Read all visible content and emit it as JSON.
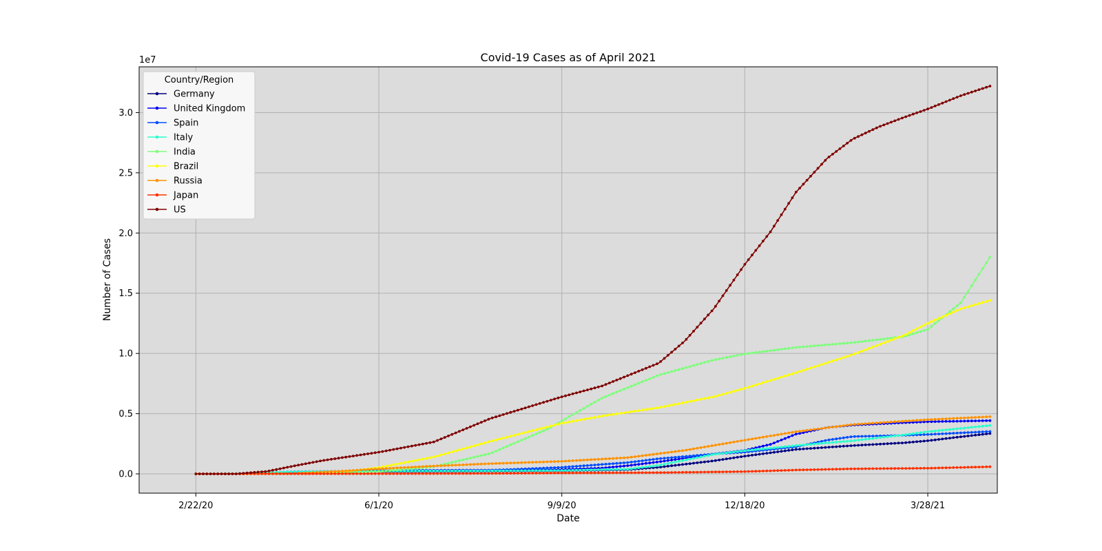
{
  "chart_data": {
    "type": "line",
    "title": "Covid-19 Cases as of April 2021",
    "xlabel": "Date",
    "ylabel": "Number of Cases",
    "y_multiplier_label": "1e7",
    "x_tick_labels": [
      "2/22/20",
      "6/1/20",
      "9/9/20",
      "12/18/20",
      "3/28/21"
    ],
    "y_tick_labels": [
      "0.0",
      "0.5",
      "1.0",
      "1.5",
      "2.0",
      "2.5",
      "3.0"
    ],
    "x_range": [
      "2020-01-22",
      "2021-05-05"
    ],
    "y_range": [
      -1600000,
      33800000
    ],
    "grid": true,
    "legend_placement": "top-left",
    "legend_title": "Country/Region",
    "series": [
      {
        "name": "Germany",
        "color": "#00007f",
        "points": [
          [
            "2020-02-22",
            0
          ],
          [
            "2020-03-15",
            5000
          ],
          [
            "2020-04-15",
            130000
          ],
          [
            "2020-06-01",
            183000
          ],
          [
            "2020-08-01",
            210000
          ],
          [
            "2020-09-09",
            255000
          ],
          [
            "2020-10-15",
            350000
          ],
          [
            "2020-11-01",
            550000
          ],
          [
            "2020-12-01",
            1080000
          ],
          [
            "2020-12-18",
            1470000
          ],
          [
            "2021-01-15",
            2030000
          ],
          [
            "2021-02-15",
            2350000
          ],
          [
            "2021-03-15",
            2580000
          ],
          [
            "2021-03-28",
            2750000
          ],
          [
            "2021-04-15",
            3080000
          ],
          [
            "2021-05-01",
            3350000
          ]
        ]
      },
      {
        "name": "United Kingdom",
        "color": "#0000f1",
        "points": [
          [
            "2020-02-22",
            0
          ],
          [
            "2020-03-15",
            1400
          ],
          [
            "2020-04-15",
            100000
          ],
          [
            "2020-06-01",
            280000
          ],
          [
            "2020-08-01",
            310000
          ],
          [
            "2020-09-09",
            360000
          ],
          [
            "2020-10-01",
            480000
          ],
          [
            "2020-10-15",
            680000
          ],
          [
            "2020-11-01",
            1000000
          ],
          [
            "2020-12-01",
            1650000
          ],
          [
            "2020-12-18",
            1950000
          ],
          [
            "2021-01-01",
            2450000
          ],
          [
            "2021-01-15",
            3300000
          ],
          [
            "2021-02-01",
            3850000
          ],
          [
            "2021-02-15",
            4050000
          ],
          [
            "2021-03-15",
            4250000
          ],
          [
            "2021-03-28",
            4330000
          ],
          [
            "2021-05-01",
            4420000
          ]
        ]
      },
      {
        "name": "Spain",
        "color": "#004dff",
        "points": [
          [
            "2020-02-22",
            0
          ],
          [
            "2020-03-15",
            7700
          ],
          [
            "2020-04-15",
            180000
          ],
          [
            "2020-06-01",
            240000
          ],
          [
            "2020-08-01",
            300000
          ],
          [
            "2020-09-09",
            540000
          ],
          [
            "2020-10-15",
            940000
          ],
          [
            "2020-11-01",
            1260000
          ],
          [
            "2020-12-01",
            1650000
          ],
          [
            "2020-12-18",
            1800000
          ],
          [
            "2021-01-15",
            2250000
          ],
          [
            "2021-02-01",
            2800000
          ],
          [
            "2021-02-15",
            3100000
          ],
          [
            "2021-03-15",
            3200000
          ],
          [
            "2021-03-28",
            3270000
          ],
          [
            "2021-05-01",
            3520000
          ]
        ]
      },
      {
        "name": "Italy",
        "color": "#29ffce",
        "points": [
          [
            "2020-02-22",
            0
          ],
          [
            "2020-03-15",
            24000
          ],
          [
            "2020-04-15",
            165000
          ],
          [
            "2020-06-01",
            234000
          ],
          [
            "2020-08-01",
            248000
          ],
          [
            "2020-09-09",
            283000
          ],
          [
            "2020-10-15",
            390000
          ],
          [
            "2020-11-01",
            710000
          ],
          [
            "2020-12-01",
            1620000
          ],
          [
            "2020-12-18",
            1930000
          ],
          [
            "2021-01-15",
            2350000
          ],
          [
            "2021-02-15",
            2750000
          ],
          [
            "2021-03-15",
            3240000
          ],
          [
            "2021-03-28",
            3500000
          ],
          [
            "2021-05-01",
            4020000
          ]
        ]
      },
      {
        "name": "India",
        "color": "#7dff7a",
        "points": [
          [
            "2020-02-22",
            0
          ],
          [
            "2020-03-15",
            100
          ],
          [
            "2020-04-15",
            12000
          ],
          [
            "2020-05-15",
            80000
          ],
          [
            "2020-06-01",
            190000
          ],
          [
            "2020-07-01",
            600000
          ],
          [
            "2020-08-01",
            1700000
          ],
          [
            "2020-09-01",
            3700000
          ],
          [
            "2020-09-09",
            4400000
          ],
          [
            "2020-10-01",
            6300000
          ],
          [
            "2020-11-01",
            8200000
          ],
          [
            "2020-12-01",
            9460000
          ],
          [
            "2020-12-18",
            9960000
          ],
          [
            "2021-01-15",
            10500000
          ],
          [
            "2021-02-15",
            10900000
          ],
          [
            "2021-03-15",
            11400000
          ],
          [
            "2021-03-28",
            12000000
          ],
          [
            "2021-04-15",
            14200000
          ],
          [
            "2021-05-01",
            18000000
          ]
        ]
      },
      {
        "name": "Brazil",
        "color": "#ffff00",
        "points": [
          [
            "2020-02-22",
            0
          ],
          [
            "2020-03-15",
            200
          ],
          [
            "2020-04-15",
            28000
          ],
          [
            "2020-05-15",
            200000
          ],
          [
            "2020-06-01",
            520000
          ],
          [
            "2020-07-01",
            1400000
          ],
          [
            "2020-08-01",
            2700000
          ],
          [
            "2020-09-09",
            4200000
          ],
          [
            "2020-10-01",
            4800000
          ],
          [
            "2020-11-01",
            5500000
          ],
          [
            "2020-12-01",
            6400000
          ],
          [
            "2020-12-18",
            7100000
          ],
          [
            "2021-01-15",
            8400000
          ],
          [
            "2021-02-15",
            9900000
          ],
          [
            "2021-03-15",
            11500000
          ],
          [
            "2021-03-28",
            12500000
          ],
          [
            "2021-04-15",
            13700000
          ],
          [
            "2021-05-01",
            14400000
          ]
        ]
      },
      {
        "name": "Russia",
        "color": "#ff9200",
        "points": [
          [
            "2020-02-22",
            0
          ],
          [
            "2020-03-15",
            60
          ],
          [
            "2020-04-15",
            25000
          ],
          [
            "2020-05-15",
            260000
          ],
          [
            "2020-06-01",
            420000
          ],
          [
            "2020-07-01",
            650000
          ],
          [
            "2020-08-01",
            850000
          ],
          [
            "2020-09-09",
            1040000
          ],
          [
            "2020-10-15",
            1350000
          ],
          [
            "2020-11-15",
            1950000
          ],
          [
            "2020-12-18",
            2800000
          ],
          [
            "2021-01-15",
            3500000
          ],
          [
            "2021-02-15",
            4100000
          ],
          [
            "2021-03-15",
            4380000
          ],
          [
            "2021-03-28",
            4500000
          ],
          [
            "2021-05-01",
            4750000
          ]
        ]
      },
      {
        "name": "Japan",
        "color": "#ff3000",
        "points": [
          [
            "2020-02-22",
            100
          ],
          [
            "2020-04-15",
            8000
          ],
          [
            "2020-06-01",
            17000
          ],
          [
            "2020-08-01",
            36000
          ],
          [
            "2020-09-09",
            75000
          ],
          [
            "2020-11-01",
            102000
          ],
          [
            "2020-12-18",
            190000
          ],
          [
            "2021-01-15",
            320000
          ],
          [
            "2021-02-15",
            420000
          ],
          [
            "2021-03-28",
            470000
          ],
          [
            "2021-05-01",
            590000
          ]
        ]
      },
      {
        "name": "US",
        "color": "#7f0000",
        "points": [
          [
            "2020-02-22",
            15
          ],
          [
            "2020-03-15",
            3500
          ],
          [
            "2020-04-01",
            210000
          ],
          [
            "2020-04-15",
            640000
          ],
          [
            "2020-05-01",
            1100000
          ],
          [
            "2020-06-01",
            1800000
          ],
          [
            "2020-07-01",
            2650000
          ],
          [
            "2020-08-01",
            4600000
          ],
          [
            "2020-09-09",
            6400000
          ],
          [
            "2020-10-01",
            7300000
          ],
          [
            "2020-11-01",
            9200000
          ],
          [
            "2020-11-15",
            11000000
          ],
          [
            "2020-12-01",
            13700000
          ],
          [
            "2020-12-18",
            17400000
          ],
          [
            "2021-01-01",
            20100000
          ],
          [
            "2021-01-15",
            23400000
          ],
          [
            "2021-02-01",
            26200000
          ],
          [
            "2021-02-15",
            27800000
          ],
          [
            "2021-03-01",
            28800000
          ],
          [
            "2021-03-15",
            29600000
          ],
          [
            "2021-03-28",
            30300000
          ],
          [
            "2021-04-15",
            31400000
          ],
          [
            "2021-05-01",
            32200000
          ]
        ]
      }
    ]
  }
}
